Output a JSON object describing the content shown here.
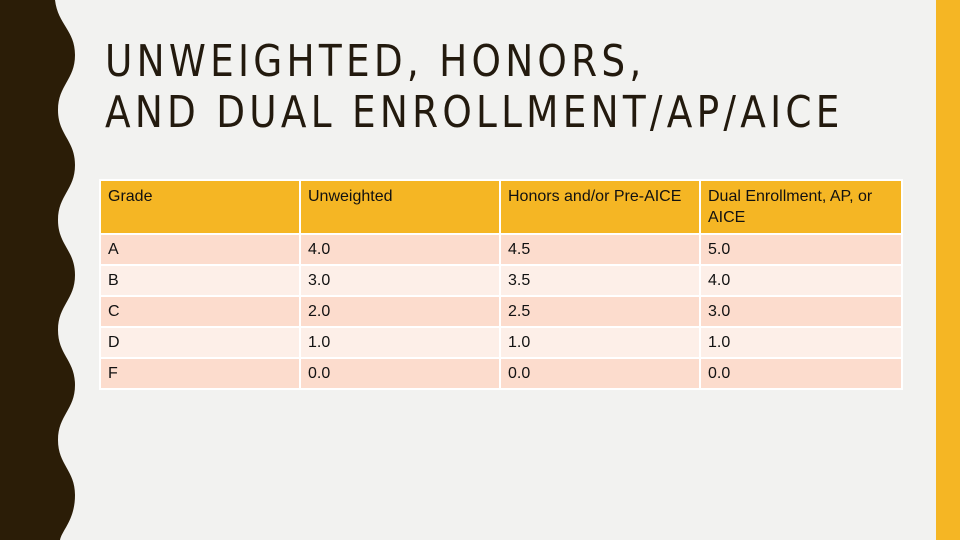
{
  "slide": {
    "title_line1": "UNWEIGHTED, HONORS,",
    "title_line2": "AND DUAL ENROLLMENT/AP/AICE"
  },
  "colors": {
    "accent": "#f5b624",
    "dark_border": "#2b1d07",
    "background": "#f2f2f0",
    "row_odd": "#fcdccd",
    "row_even": "#fdefe8"
  },
  "table": {
    "headers": [
      "Grade",
      "Unweighted",
      "Honors and/or Pre-AICE",
      "Dual Enrollment, AP, or AICE"
    ],
    "rows": [
      [
        "A",
        "4.0",
        "4.5",
        "5.0"
      ],
      [
        "B",
        "3.0",
        "3.5",
        "4.0"
      ],
      [
        "C",
        "2.0",
        "2.5",
        "3.0"
      ],
      [
        "D",
        "1.0",
        "1.0",
        "1.0"
      ],
      [
        "F",
        "0.0",
        "0.0",
        "0.0"
      ]
    ]
  }
}
